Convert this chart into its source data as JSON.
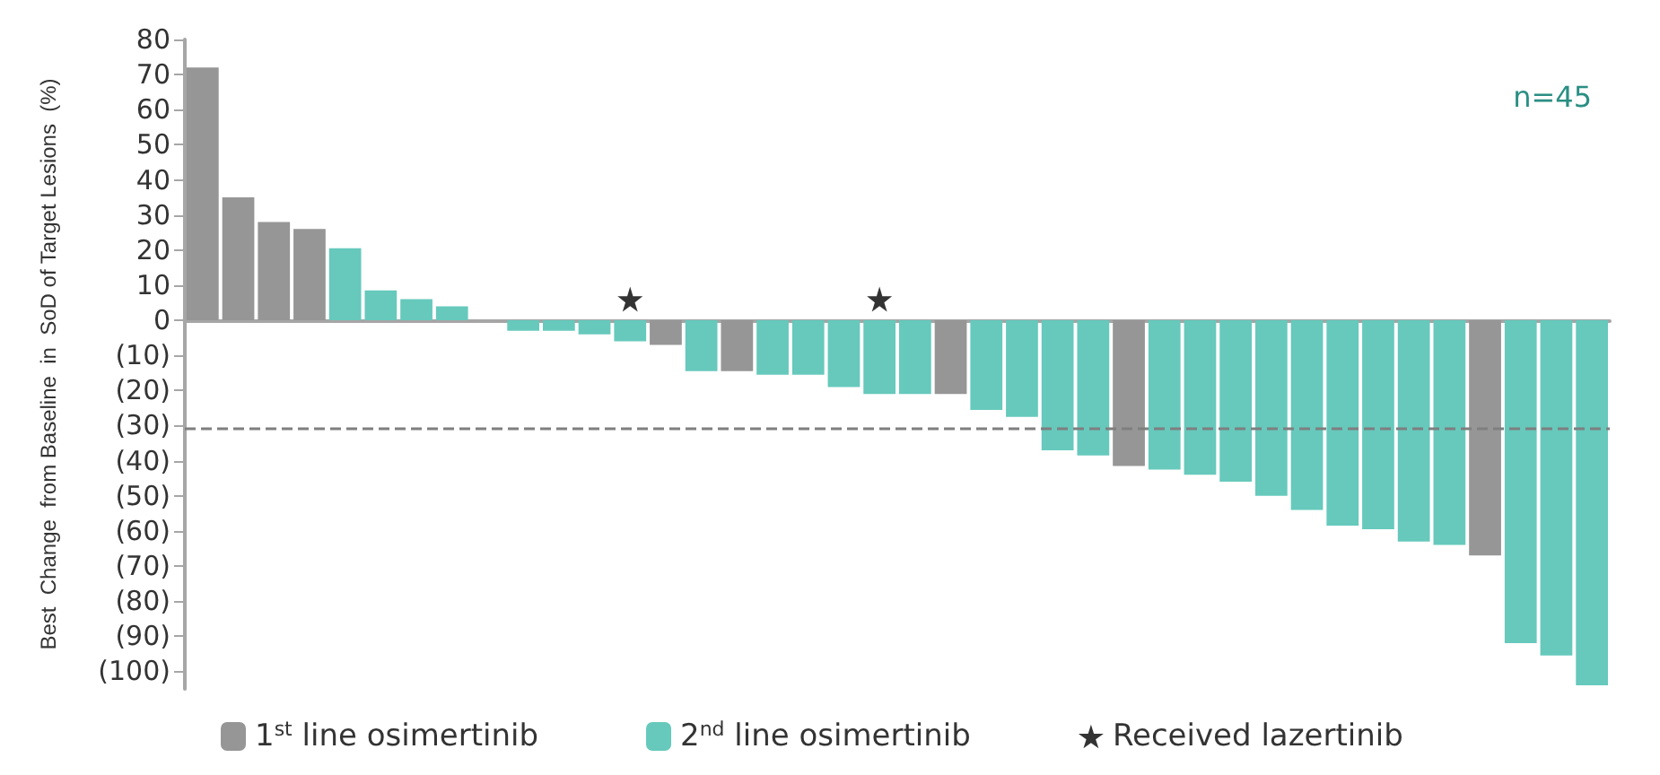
{
  "chart_data": {
    "type": "bar",
    "stacked": true,
    "ylabel": "Best  Change  from Baseline  in  SoD of Target Lesions  (%)",
    "annotations": [
      "n=45"
    ],
    "categories": [
      null,
      null,
      null,
      null,
      null,
      null,
      null,
      null,
      null,
      null,
      null,
      null,
      null,
      null,
      null,
      null,
      null,
      null,
      null,
      null,
      null,
      null,
      null,
      null,
      null,
      null,
      null,
      null,
      null,
      null,
      null,
      null,
      null,
      null,
      null,
      null,
      null,
      null,
      null,
      null
    ],
    "series": [
      {
        "name": "1$^{st}$ line osimertinib",
        "color": "#969696",
        "values": [
          72,
          35,
          28,
          26,
          null,
          null,
          null,
          null,
          null,
          null,
          null,
          null,
          null,
          -7,
          null,
          -14.5,
          null,
          null,
          null,
          null,
          null,
          -21,
          null,
          null,
          null,
          null,
          -41.5,
          null,
          null,
          null,
          null,
          null,
          null,
          null,
          null,
          null,
          -67,
          null,
          null,
          null
        ]
      },
      {
        "name": "2$^{nd}$ line osimertinib",
        "color": "#66c9bc",
        "values": [
          null,
          null,
          null,
          null,
          20.5,
          8.5,
          6,
          4,
          0,
          -3,
          -3,
          -4,
          -6,
          null,
          -14.5,
          null,
          -15.5,
          -15.5,
          -19,
          -21,
          -21,
          null,
          -25.5,
          -27.5,
          -37,
          -38.5,
          null,
          -42.5,
          -44,
          -46,
          -50,
          -54,
          -58.5,
          -59.5,
          -63,
          -64,
          null,
          -92,
          -95.5,
          -104
        ]
      },
      {
        "name": "Received lazertinib",
        "type": "scatter",
        "marker": "star",
        "color": "#000000",
        "values": [
          null,
          null,
          null,
          null,
          null,
          null,
          null,
          null,
          null,
          null,
          null,
          null,
          6,
          null,
          null,
          null,
          null,
          null,
          null,
          6,
          null,
          null,
          null,
          null,
          null,
          null,
          null,
          null,
          null,
          null,
          null,
          null,
          null,
          null,
          null,
          null,
          null,
          null,
          null,
          null
        ]
      }
    ],
    "ylim": [
      -105,
      80
    ],
    "yticks": [
      80,
      70,
      60,
      50,
      40,
      30,
      20,
      10,
      0,
      {
        "value": -10,
        "label": "(10)"
      },
      {
        "value": -20,
        "label": "(20)"
      },
      {
        "value": -30,
        "label": "(30)"
      },
      {
        "value": -40,
        "label": "(40)"
      },
      {
        "value": -50,
        "label": "(50)"
      },
      {
        "value": -60,
        "label": "(60)"
      },
      {
        "value": -70,
        "label": "(70)"
      },
      {
        "value": -80,
        "label": "(80)"
      },
      {
        "value": -90,
        "label": "(90)"
      },
      {
        "value": -100,
        "label": "(100)"
      }
    ],
    "ref_lines": [
      {
        "axis": "y",
        "value": -31,
        "color": "#7f7f7f",
        "line_style": "dashed"
      }
    ],
    "legend": "bottom"
  }
}
